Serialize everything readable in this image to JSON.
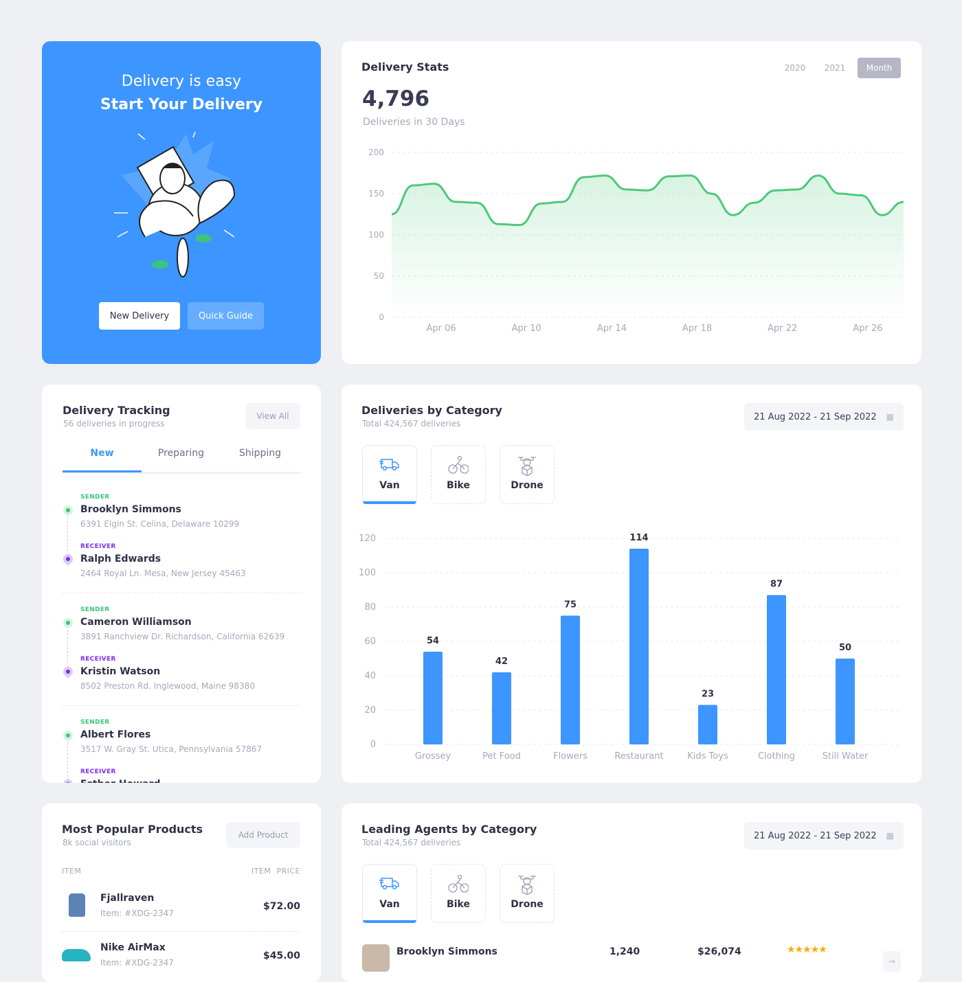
{
  "hero": {
    "line1": "Delivery is easy",
    "line2": "Start Your Delivery",
    "new_delivery": "New Delivery",
    "quick_guide": "Quick Guide"
  },
  "stats": {
    "title": "Delivery Stats",
    "filters": [
      "2020",
      "2021",
      "Month"
    ],
    "active_filter": "Month",
    "total": "4,796",
    "total_label": "Deliveries in 30 Days"
  },
  "tracking": {
    "title": "Delivery Tracking",
    "subtitle": "56 deliveries in progress",
    "view_all": "View All",
    "tabs": [
      "New",
      "Preparing",
      "Shipping"
    ],
    "active_tab": "New",
    "sender_label": "SENDER",
    "receiver_label": "RECEIVER",
    "items": [
      {
        "sender": "Brooklyn Simmons",
        "sender_addr": "6391 Elgin St. Celina, Delaware 10299",
        "receiver": "Ralph Edwards",
        "receiver_addr": "2464 Royal Ln. Mesa, New Jersey 45463"
      },
      {
        "sender": "Cameron Williamson",
        "sender_addr": "3891 Ranchview Dr. Richardson, California 62639",
        "receiver": "Kristin Watson",
        "receiver_addr": "8502 Preston Rd. Inglewood, Maine 98380"
      },
      {
        "sender": "Albert Flores",
        "sender_addr": "3517 W. Gray St. Utica, Pennsylvania 57867",
        "receiver": "Esther Howard",
        "receiver_addr": ""
      }
    ]
  },
  "category": {
    "title": "Deliveries by Category",
    "subtitle": "Total 424,567 deliveries",
    "date_range": "21 Aug 2022 - 21 Sep 2022",
    "modes": [
      "Van",
      "Bike",
      "Drone"
    ],
    "active_mode": "Van"
  },
  "products": {
    "title": "Most Popular Products",
    "subtitle": "8k social visitors",
    "add_button": "Add Product",
    "col_item": "ITEM",
    "col_price": "ITEM  PRICE",
    "items": [
      {
        "name": "Fjallraven",
        "code": "Item: #XDG-2347",
        "price": "$72.00"
      },
      {
        "name": "Nike AirMax",
        "code": "Item: #XDG-2347",
        "price": "$45.00"
      }
    ]
  },
  "agents": {
    "title": "Leading Agents by Category",
    "subtitle": "Total 424,567 deliveries",
    "date_range": "21 Aug 2022 - 21 Sep 2022",
    "modes": [
      "Van",
      "Bike",
      "Drone"
    ],
    "active_mode": "Van",
    "rows": [
      {
        "name": "Brooklyn Simmons",
        "deliveries": "1,240",
        "earnings": "$26,074",
        "rating": 5
      }
    ]
  },
  "colors": {
    "accent": "#3d95ff",
    "line": "#4cc97a",
    "sender": "#3ec47a",
    "receiver": "#7b2ff0",
    "star": "#ffa800"
  },
  "chart_data": [
    {
      "type": "area",
      "ylim": [
        0,
        200
      ],
      "yticks": [
        0,
        50,
        100,
        150,
        200
      ],
      "xtick_labels": [
        "Apr 06",
        "Apr 10",
        "Apr  14",
        "Apr 18",
        "Apr 22",
        "Apr 26"
      ],
      "grid": true,
      "x": [
        "Apr 04",
        "Apr 05",
        "Apr 06",
        "Apr 07",
        "Apr 08",
        "Apr 09",
        "Apr 10",
        "Apr 11",
        "Apr 12",
        "Apr 13",
        "Apr 14",
        "Apr 15",
        "Apr 16",
        "Apr 17",
        "Apr 18",
        "Apr 19",
        "Apr 20",
        "Apr 21",
        "Apr 22",
        "Apr 23",
        "Apr 24",
        "Apr 25",
        "Apr 26",
        "Apr 27",
        "Apr 28"
      ],
      "values": [
        125,
        160,
        162,
        140,
        139,
        113,
        112,
        138,
        140,
        170,
        172,
        155,
        154,
        171,
        172,
        150,
        124,
        139,
        154,
        155,
        172,
        150,
        148,
        124,
        140
      ]
    },
    {
      "type": "bar",
      "ylim": [
        0,
        120
      ],
      "yticks": [
        0,
        20,
        40,
        60,
        80,
        100,
        120
      ],
      "grid": true,
      "categories": [
        "Grossey",
        "Pet Food",
        "Flowers",
        "Restaurant",
        "Kids Toys",
        "Clothing",
        "Still Water"
      ],
      "values": [
        54,
        42,
        75,
        114,
        23,
        87,
        50
      ]
    }
  ]
}
